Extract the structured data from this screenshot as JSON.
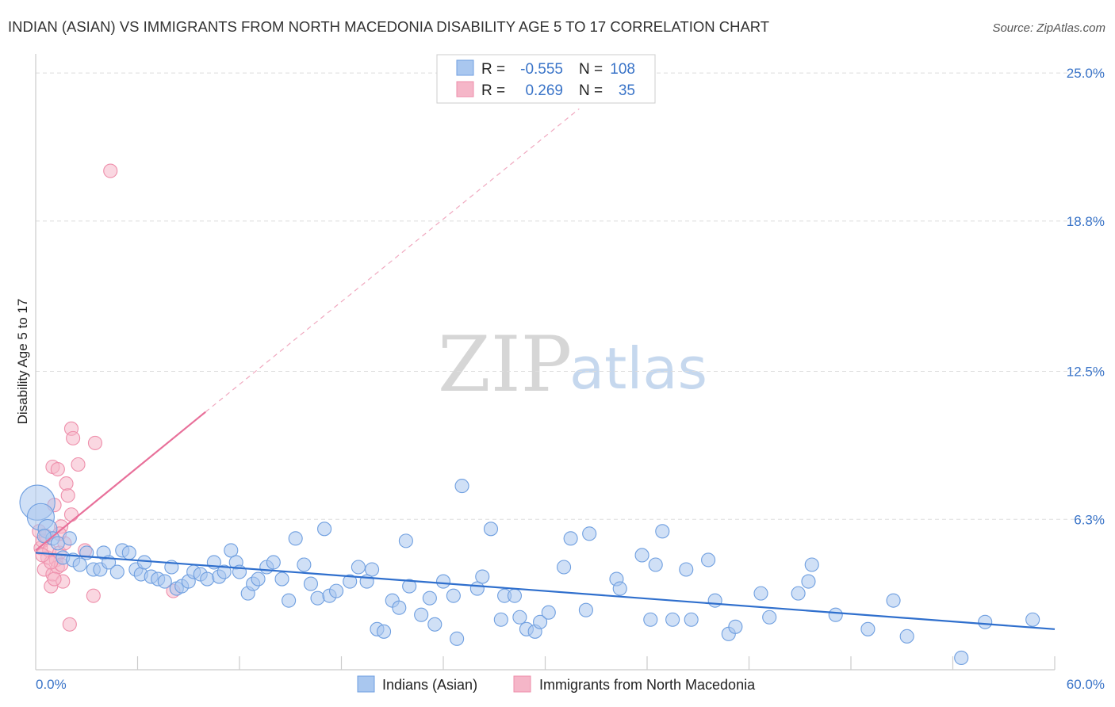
{
  "header": {
    "title": "INDIAN (ASIAN) VS IMMIGRANTS FROM NORTH MACEDONIA DISABILITY AGE 5 TO 17 CORRELATION CHART",
    "source": "Source: ZipAtlas.com"
  },
  "watermark": {
    "zip": "ZIP",
    "atlas": "atlas"
  },
  "legend": {
    "rows": [
      {
        "r_label": "R =",
        "r_value": "-0.555",
        "n_label": "N =",
        "n_value": "108",
        "color": "#a9c7ef"
      },
      {
        "r_label": "R =",
        "r_value": "0.269",
        "n_label": "N =",
        "n_value": "35",
        "color": "#f5b6c8"
      }
    ]
  },
  "bottom_legend": {
    "items": [
      {
        "label": "Indians (Asian)",
        "color": "#a9c7ef"
      },
      {
        "label": "Immigrants from North Macedonia",
        "color": "#f5b6c8"
      }
    ]
  },
  "chart_data": {
    "type": "scatter",
    "title": "INDIAN (ASIAN) VS IMMIGRANTS FROM NORTH MACEDONIA DISABILITY AGE 5 TO 17 CORRELATION CHART",
    "xlabel": "",
    "ylabel": "Disability Age 5 to 17",
    "xlim": [
      0,
      60
    ],
    "ylim": [
      0,
      25.8
    ],
    "x_tick_labels": [
      "0.0%",
      "60.0%"
    ],
    "y_ticks": [
      6.3,
      12.5,
      18.8,
      25.0
    ],
    "y_tick_labels": [
      "6.3%",
      "12.5%",
      "18.8%",
      "25.0%"
    ],
    "grid": true,
    "series": [
      {
        "name": "Indians (Asian)",
        "color": "#6f9fe0",
        "fill": "#a9c7ef",
        "trend": {
          "x0": 0,
          "y0": 4.9,
          "x1": 60,
          "y1": 1.7,
          "style": "solid",
          "color": "#2f6fcd"
        },
        "points": [
          [
            0.1,
            7.0,
            2.6
          ],
          [
            0.3,
            6.4,
            2.0
          ],
          [
            0.7,
            5.9,
            1.4
          ],
          [
            1.0,
            5.5,
            1.0
          ],
          [
            1.3,
            5.3,
            1.0
          ],
          [
            1.6,
            4.7,
            1.0
          ],
          [
            2.0,
            5.5,
            1.0
          ],
          [
            2.2,
            4.6,
            1.0
          ],
          [
            2.6,
            4.4,
            1.0
          ],
          [
            3.0,
            4.9,
            1.0
          ],
          [
            3.4,
            4.2,
            1.0
          ],
          [
            3.8,
            4.2,
            1.0
          ],
          [
            4.0,
            4.9,
            1.0
          ],
          [
            4.3,
            4.5,
            1.0
          ],
          [
            4.8,
            4.1,
            1.0
          ],
          [
            5.1,
            5.0,
            1.0
          ],
          [
            5.5,
            4.9,
            1.0
          ],
          [
            5.9,
            4.2,
            1.0
          ],
          [
            6.2,
            4.0,
            1.0
          ],
          [
            6.4,
            4.5,
            1.0
          ],
          [
            6.8,
            3.9,
            1.0
          ],
          [
            7.2,
            3.8,
            1.0
          ],
          [
            7.6,
            3.7,
            1.0
          ],
          [
            8.0,
            4.3,
            1.0
          ],
          [
            8.3,
            3.4,
            1.0
          ],
          [
            8.6,
            3.5,
            1.0
          ],
          [
            9.0,
            3.7,
            1.0
          ],
          [
            9.3,
            4.1,
            1.0
          ],
          [
            9.7,
            4.0,
            1.0
          ],
          [
            10.1,
            3.8,
            1.0
          ],
          [
            10.5,
            4.5,
            1.0
          ],
          [
            10.8,
            3.9,
            1.0
          ],
          [
            11.1,
            4.1,
            1.0
          ],
          [
            11.5,
            5.0,
            1.0
          ],
          [
            11.8,
            4.5,
            1.0
          ],
          [
            12.0,
            4.1,
            1.0
          ],
          [
            12.5,
            3.2,
            1.0
          ],
          [
            12.8,
            3.6,
            1.0
          ],
          [
            13.1,
            3.8,
            1.0
          ],
          [
            13.6,
            4.3,
            1.0
          ],
          [
            14.0,
            4.5,
            1.0
          ],
          [
            14.5,
            3.8,
            1.0
          ],
          [
            14.9,
            2.9,
            1.0
          ],
          [
            15.3,
            5.5,
            1.0
          ],
          [
            15.8,
            4.4,
            1.0
          ],
          [
            16.2,
            3.6,
            1.0
          ],
          [
            16.6,
            3.0,
            1.0
          ],
          [
            17.0,
            5.9,
            1.0
          ],
          [
            17.3,
            3.1,
            1.0
          ],
          [
            17.7,
            3.3,
            1.0
          ],
          [
            18.5,
            3.7,
            1.0
          ],
          [
            19.0,
            4.3,
            1.0
          ],
          [
            19.5,
            3.7,
            1.0
          ],
          [
            19.8,
            4.2,
            1.0
          ],
          [
            20.1,
            1.7,
            1.0
          ],
          [
            20.5,
            1.6,
            1.0
          ],
          [
            21.0,
            2.9,
            1.0
          ],
          [
            21.4,
            2.6,
            1.0
          ],
          [
            21.8,
            5.4,
            1.0
          ],
          [
            22.0,
            3.5,
            1.0
          ],
          [
            22.7,
            2.3,
            1.0
          ],
          [
            23.2,
            3.0,
            1.0
          ],
          [
            23.5,
            1.9,
            1.0
          ],
          [
            24.0,
            3.7,
            1.0
          ],
          [
            24.6,
            3.1,
            1.0
          ],
          [
            24.8,
            1.3,
            1.0
          ],
          [
            25.1,
            7.7,
            1.0
          ],
          [
            26.0,
            3.4,
            1.0
          ],
          [
            26.3,
            3.9,
            1.0
          ],
          [
            26.8,
            5.9,
            1.0
          ],
          [
            27.4,
            2.1,
            1.0
          ],
          [
            27.6,
            3.1,
            1.0
          ],
          [
            28.2,
            3.1,
            1.0
          ],
          [
            28.5,
            2.2,
            1.0
          ],
          [
            28.9,
            1.7,
            1.0
          ],
          [
            29.4,
            1.6,
            1.0
          ],
          [
            29.7,
            2.0,
            1.0
          ],
          [
            30.2,
            2.4,
            1.0
          ],
          [
            31.1,
            4.3,
            1.0
          ],
          [
            31.5,
            5.5,
            1.0
          ],
          [
            32.4,
            2.5,
            1.0
          ],
          [
            32.6,
            5.7,
            1.0
          ],
          [
            34.2,
            3.8,
            1.0
          ],
          [
            34.4,
            3.4,
            1.0
          ],
          [
            35.7,
            4.8,
            1.0
          ],
          [
            36.2,
            2.1,
            1.0
          ],
          [
            36.5,
            4.4,
            1.0
          ],
          [
            36.9,
            5.8,
            1.0
          ],
          [
            37.5,
            2.1,
            1.0
          ],
          [
            38.3,
            4.2,
            1.0
          ],
          [
            38.6,
            2.1,
            1.0
          ],
          [
            39.6,
            4.6,
            1.0
          ],
          [
            40.0,
            2.9,
            1.0
          ],
          [
            40.8,
            1.5,
            1.0
          ],
          [
            41.2,
            1.8,
            1.0
          ],
          [
            42.7,
            3.2,
            1.0
          ],
          [
            43.2,
            2.2,
            1.0
          ],
          [
            44.9,
            3.2,
            1.0
          ],
          [
            45.5,
            3.7,
            1.0
          ],
          [
            45.7,
            4.4,
            1.0
          ],
          [
            47.1,
            2.3,
            1.0
          ],
          [
            49.0,
            1.7,
            1.0
          ],
          [
            50.5,
            2.9,
            1.0
          ],
          [
            51.3,
            1.4,
            1.0
          ],
          [
            54.5,
            0.5,
            1.0
          ],
          [
            55.9,
            2.0,
            1.0
          ],
          [
            58.7,
            2.1,
            1.0
          ],
          [
            0.5,
            5.6,
            1.0
          ]
        ]
      },
      {
        "name": "Immigrants from North Macedonia",
        "color": "#ee8fab",
        "fill": "#f5b6c8",
        "trend": {
          "x0": 0,
          "y0": 5.0,
          "x1": 10,
          "y1": 10.8,
          "dash_to_x": 32,
          "dash_to_y": 23.5,
          "style": "solid-then-dashed",
          "color": "#e8709a"
        },
        "points": [
          [
            0.2,
            5.8,
            1.0
          ],
          [
            0.3,
            5.1,
            1.0
          ],
          [
            0.4,
            5.4,
            1.0
          ],
          [
            0.5,
            4.2,
            1.0
          ],
          [
            0.6,
            5.6,
            1.0
          ],
          [
            0.7,
            4.7,
            1.0
          ],
          [
            0.8,
            5.0,
            1.0
          ],
          [
            0.9,
            3.5,
            1.0
          ],
          [
            1.0,
            8.5,
            1.0
          ],
          [
            1.0,
            4.0,
            1.0
          ],
          [
            1.1,
            6.9,
            1.0
          ],
          [
            1.2,
            4.6,
            1.0
          ],
          [
            1.3,
            8.4,
            1.0
          ],
          [
            1.3,
            4.3,
            1.0
          ],
          [
            1.4,
            4.9,
            1.0
          ],
          [
            1.5,
            4.4,
            1.0
          ],
          [
            1.5,
            6.0,
            1.0
          ],
          [
            1.6,
            3.7,
            1.0
          ],
          [
            1.7,
            5.3,
            1.0
          ],
          [
            1.8,
            7.8,
            1.0
          ],
          [
            1.9,
            7.3,
            1.0
          ],
          [
            2.0,
            1.9,
            1.0
          ],
          [
            2.1,
            6.5,
            1.0
          ],
          [
            2.1,
            10.1,
            1.0
          ],
          [
            2.2,
            9.7,
            1.0
          ],
          [
            2.5,
            8.6,
            1.0
          ],
          [
            3.4,
            3.1,
            1.0
          ],
          [
            3.5,
            9.5,
            1.0
          ],
          [
            4.4,
            20.9,
            1.0
          ],
          [
            8.1,
            3.3,
            1.0
          ],
          [
            0.9,
            4.5,
            1.0
          ],
          [
            1.4,
            5.7,
            1.0
          ],
          [
            0.4,
            4.8,
            1.0
          ],
          [
            1.1,
            3.8,
            1.0
          ],
          [
            2.9,
            5.0,
            1.0
          ]
        ]
      }
    ]
  }
}
